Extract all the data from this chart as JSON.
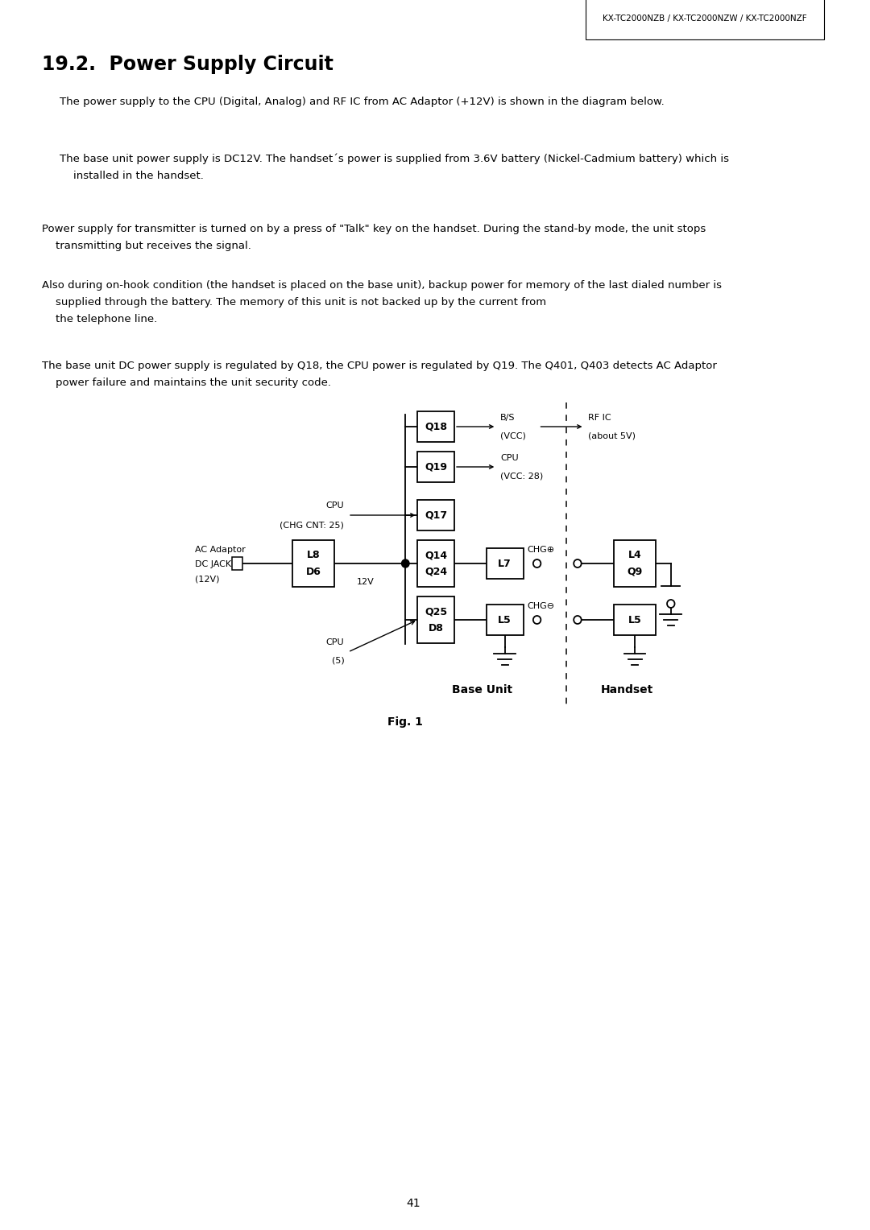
{
  "header": "KX-TC2000NZB / KX-TC2000NZW / KX-TC2000NZF",
  "title": "19.2.  Power Supply Circuit",
  "para1": "    The power supply to the CPU (Digital, Analog) and RF IC from AC Adaptor (+12V) is shown in the diagram below.",
  "para2": "    The base unit power supply is DC12V. The handset´s power is supplied from 3.6V battery (Nickel-Cadmium battery) which is\n    installed in the handset.",
  "para3": "    Power supply for transmitter is turned on by a press of \"Talk\" key on the handset. During the stand-by mode, the unit stops\n    transmitting but receives the signal.",
  "para4": "    Also during on-hook condition (the handset is placed on the base unit), backup power for memory of the last dialed number is\n    supplied through the battery. The memory of this unit is not backed up by the current from\n    the telephone line.",
  "para5": "    The base unit DC power supply is regulated by Q18, the CPU power is regulated by Q19. The Q401, Q403 detects AC Adaptor\n    power failure and maintains the unit security code.",
  "fig_caption": "Fig. 1",
  "page_number": "41",
  "bg_color": "#ffffff",
  "text_color": "#000000",
  "base_unit_label": "Base Unit",
  "handset_label": "Handset"
}
